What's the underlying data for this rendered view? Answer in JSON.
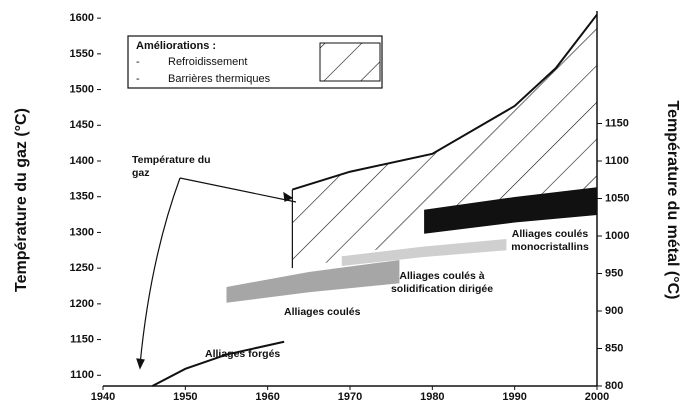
{
  "chart_data": {
    "type": "area",
    "y_label": "Température du gaz (°C)",
    "y2_label": "Température du métal (°C)",
    "xlim": [
      1940,
      2000
    ],
    "xticks": [
      1940,
      1950,
      1960,
      1970,
      1980,
      1990,
      2000
    ],
    "ylim": [
      1085,
      1610
    ],
    "yticks": [
      1100,
      1150,
      1200,
      1250,
      1300,
      1350,
      1400,
      1450,
      1500,
      1550,
      1600
    ],
    "y2lim": [
      800,
      1300
    ],
    "y2ticks": [
      800,
      850,
      900,
      950,
      1000,
      1050,
      1100,
      1150
    ],
    "gas_curves": [
      {
        "x": [
          1946,
          1950,
          1955,
          1962
        ],
        "values": [
          1085,
          1109,
          1129,
          1147
        ]
      },
      {
        "x": [
          1963,
          1970,
          1980,
          1990,
          1995,
          2000
        ],
        "values": [
          1360,
          1385,
          1410,
          1477,
          1530,
          1605
        ]
      }
    ],
    "hatched_lower": [
      1250,
      1263,
      1303,
      1342,
      1352,
      1362
    ],
    "bands": [
      {
        "x": [
          1955,
          1965,
          1976
        ],
        "lower": [
          911,
          925,
          937
        ],
        "upper": [
          932,
          952,
          968
        ],
        "color": "#a6a6a6"
      },
      {
        "x": [
          1969,
          1979,
          1989
        ],
        "lower": [
          960,
          972,
          981
        ],
        "upper": [
          973,
          986,
          996
        ],
        "color": "#cfcfcf"
      },
      {
        "x": [
          1979,
          1990,
          2000
        ],
        "lower": [
          1003,
          1018,
          1028
        ],
        "upper": [
          1035,
          1052,
          1065
        ],
        "color": "#111111"
      }
    ],
    "legend": {
      "title": "Améliorations :",
      "items": [
        "Refroidissement",
        "Barrières thermiques"
      ]
    },
    "annotations": {
      "gas": [
        "Température du",
        "gaz"
      ],
      "forged": [
        "Alliages forgés"
      ],
      "cast": [
        "Alliages coulés"
      ],
      "directional": [
        "Alliages coulés à",
        "solidification dirigée"
      ],
      "single_crystal": [
        "Alliages coulés",
        "monocristallins"
      ]
    }
  }
}
